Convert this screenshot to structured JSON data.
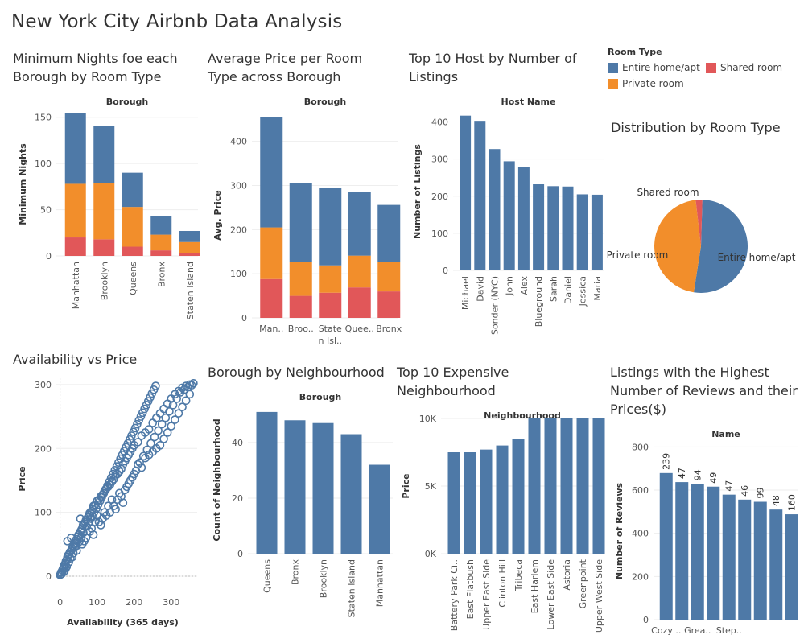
{
  "page_title": "New York City Airbnb Data Analysis",
  "colors": {
    "entire": "#4E79A7",
    "private": "#F28E2B",
    "shared": "#E15759",
    "grid": "#eeeeee",
    "axis": "#d0d0d0",
    "text": "#555555"
  },
  "legend": {
    "title": "Room Type",
    "items": [
      {
        "label": "Entire home/apt",
        "color": "#4E79A7"
      },
      {
        "label": "Shared room",
        "color": "#E15759"
      },
      {
        "label": "Private room",
        "color": "#F28E2B"
      }
    ]
  },
  "chart_data": [
    {
      "id": "min_nights",
      "type": "bar",
      "title": "Minimum Nights foe each Borough by Room Type",
      "header": "Borough",
      "ylabel": "Minimum Nights",
      "ylim": [
        0,
        155
      ],
      "yticks": [
        0,
        50,
        100,
        150
      ],
      "categories": [
        "Manhattan",
        "Brooklyn",
        "Queens",
        "Bronx",
        "Staten Island"
      ],
      "stacked": true,
      "series": [
        {
          "name": "Shared room",
          "color": "#E15759",
          "values": [
            20,
            18,
            10,
            6,
            3
          ]
        },
        {
          "name": "Private room",
          "color": "#F28E2B",
          "values": [
            58,
            61,
            43,
            17,
            12
          ]
        },
        {
          "name": "Entire home/apt",
          "color": "#4E79A7",
          "values": [
            77,
            62,
            37,
            20,
            12
          ]
        }
      ]
    },
    {
      "id": "avg_price",
      "type": "bar",
      "title": "Average Price per Room Type across Borough",
      "header": "Borough",
      "ylabel": "Avg. Price",
      "ylim": [
        0,
        465
      ],
      "yticks": [
        0,
        100,
        200,
        300,
        400
      ],
      "categories": [
        "Man..",
        "Broo..",
        "State n Isl..",
        "Quee..",
        "Bronx"
      ],
      "stacked": true,
      "series": [
        {
          "name": "Shared room",
          "color": "#E15759",
          "values": [
            88,
            50,
            57,
            69,
            60
          ]
        },
        {
          "name": "Private room",
          "color": "#F28E2B",
          "values": [
            117,
            76,
            62,
            72,
            66
          ]
        },
        {
          "name": "Entire home/apt",
          "color": "#4E79A7",
          "values": [
            250,
            180,
            175,
            145,
            130
          ]
        }
      ]
    },
    {
      "id": "top_hosts",
      "type": "bar",
      "title": "Top 10 Host by Number of Listings",
      "header": "Host Name",
      "ylabel": "Number of Listings",
      "ylim": [
        0,
        425
      ],
      "yticks": [
        0,
        100,
        200,
        300,
        400
      ],
      "categories": [
        "Michael",
        "David",
        "Sonder (NYC)",
        "John",
        "Alex",
        "Blueground",
        "Sarah",
        "Daniel",
        "Jessica",
        "Maria"
      ],
      "values": [
        417,
        403,
        327,
        294,
        279,
        232,
        227,
        226,
        205,
        204
      ]
    },
    {
      "id": "room_dist",
      "type": "pie",
      "title": "Distribution by Room Type",
      "slices": [
        {
          "label": "Entire home/apt",
          "value": 52,
          "color": "#4E79A7"
        },
        {
          "label": "Private room",
          "value": 45.7,
          "color": "#F28E2B"
        },
        {
          "label": "Shared room",
          "value": 2.3,
          "color": "#E15759"
        }
      ]
    },
    {
      "id": "avail_price",
      "type": "scatter",
      "title": "Availability vs Price",
      "xlabel": "Availability (365 days)",
      "ylabel": "Price",
      "xlim": [
        -10,
        370
      ],
      "ylim": [
        -5,
        310
      ],
      "xticks": [
        0,
        100,
        200,
        300
      ],
      "yticks": [
        0,
        100,
        200,
        300
      ],
      "points": [
        [
          0,
          2
        ],
        [
          2,
          3
        ],
        [
          3,
          6
        ],
        [
          5,
          4
        ],
        [
          6,
          9
        ],
        [
          8,
          12
        ],
        [
          10,
          14
        ],
        [
          12,
          18
        ],
        [
          14,
          20
        ],
        [
          16,
          24
        ],
        [
          18,
          26
        ],
        [
          20,
          30
        ],
        [
          22,
          33
        ],
        [
          25,
          35
        ],
        [
          27,
          38
        ],
        [
          30,
          40
        ],
        [
          32,
          44
        ],
        [
          35,
          46
        ],
        [
          38,
          50
        ],
        [
          40,
          52
        ],
        [
          42,
          56
        ],
        [
          45,
          58
        ],
        [
          48,
          62
        ],
        [
          50,
          65
        ],
        [
          55,
          70
        ],
        [
          58,
          73
        ],
        [
          60,
          75
        ],
        [
          62,
          80
        ],
        [
          65,
          82
        ],
        [
          68,
          85
        ],
        [
          70,
          88
        ],
        [
          75,
          92
        ],
        [
          78,
          96
        ],
        [
          80,
          99
        ],
        [
          85,
          102
        ],
        [
          88,
          105
        ],
        [
          90,
          110
        ],
        [
          95,
          112
        ],
        [
          100,
          118
        ],
        [
          105,
          120
        ],
        [
          110,
          125
        ],
        [
          115,
          128
        ],
        [
          120,
          133
        ],
        [
          125,
          137
        ],
        [
          130,
          140
        ],
        [
          135,
          143
        ],
        [
          140,
          148
        ],
        [
          145,
          152
        ],
        [
          150,
          158
        ],
        [
          155,
          160
        ],
        [
          160,
          164
        ],
        [
          165,
          168
        ],
        [
          170,
          175
        ],
        [
          175,
          180
        ],
        [
          180,
          185
        ],
        [
          185,
          190
        ],
        [
          190,
          195
        ],
        [
          195,
          200
        ],
        [
          200,
          205
        ],
        [
          210,
          210
        ],
        [
          220,
          220
        ],
        [
          230,
          225
        ],
        [
          240,
          230
        ],
        [
          250,
          240
        ],
        [
          260,
          248
        ],
        [
          270,
          255
        ],
        [
          280,
          262
        ],
        [
          290,
          270
        ],
        [
          300,
          278
        ],
        [
          310,
          285
        ],
        [
          320,
          290
        ],
        [
          330,
          295
        ],
        [
          340,
          298
        ],
        [
          350,
          300
        ],
        [
          360,
          302
        ],
        [
          20,
          55
        ],
        [
          30,
          60
        ],
        [
          40,
          45
        ],
        [
          55,
          90
        ],
        [
          70,
          60
        ],
        [
          80,
          70
        ],
        [
          95,
          85
        ],
        [
          100,
          95
        ],
        [
          110,
          80
        ],
        [
          120,
          100
        ],
        [
          130,
          110
        ],
        [
          140,
          120
        ],
        [
          150,
          105
        ],
        [
          160,
          130
        ],
        [
          170,
          115
        ],
        [
          180,
          140
        ],
        [
          190,
          150
        ],
        [
          200,
          160
        ],
        [
          210,
          175
        ],
        [
          220,
          170
        ],
        [
          230,
          185
        ],
        [
          240,
          190
        ],
        [
          250,
          195
        ],
        [
          260,
          200
        ],
        [
          270,
          205
        ],
        [
          280,
          215
        ],
        [
          290,
          225
        ],
        [
          300,
          235
        ],
        [
          310,
          245
        ],
        [
          320,
          255
        ],
        [
          330,
          265
        ],
        [
          340,
          275
        ],
        [
          350,
          285
        ],
        [
          45,
          40
        ],
        [
          60,
          50
        ],
        [
          65,
          55
        ],
        [
          85,
          75
        ],
        [
          90,
          65
        ],
        [
          105,
          85
        ],
        [
          115,
          90
        ],
        [
          125,
          95
        ],
        [
          135,
          100
        ],
        [
          145,
          110
        ],
        [
          155,
          120
        ],
        [
          165,
          125
        ],
        [
          175,
          135
        ],
        [
          185,
          145
        ],
        [
          195,
          155
        ],
        [
          205,
          165
        ],
        [
          215,
          178
        ],
        [
          225,
          188
        ],
        [
          235,
          198
        ],
        [
          245,
          208
        ],
        [
          255,
          218
        ],
        [
          265,
          228
        ],
        [
          275,
          238
        ],
        [
          285,
          248
        ],
        [
          295,
          258
        ],
        [
          305,
          268
        ],
        [
          315,
          278
        ],
        [
          325,
          288
        ],
        [
          335,
          292
        ],
        [
          345,
          296
        ],
        [
          355,
          299
        ],
        [
          12,
          8
        ],
        [
          15,
          12
        ],
        [
          18,
          15
        ],
        [
          24,
          22
        ],
        [
          28,
          28
        ],
        [
          33,
          30
        ],
        [
          36,
          36
        ],
        [
          44,
          48
        ],
        [
          52,
          54
        ],
        [
          57,
          60
        ],
        [
          63,
          68
        ],
        [
          72,
          78
        ],
        [
          77,
          84
        ],
        [
          83,
          90
        ],
        [
          87,
          94
        ],
        [
          92,
          100
        ],
        [
          98,
          106
        ],
        [
          103,
          112
        ],
        [
          108,
          118
        ],
        [
          113,
          124
        ],
        [
          118,
          130
        ],
        [
          123,
          136
        ],
        [
          128,
          142
        ],
        [
          133,
          148
        ],
        [
          138,
          154
        ],
        [
          143,
          160
        ],
        [
          148,
          166
        ],
        [
          153,
          172
        ],
        [
          158,
          178
        ],
        [
          163,
          184
        ],
        [
          168,
          190
        ],
        [
          173,
          196
        ],
        [
          178,
          202
        ],
        [
          183,
          208
        ],
        [
          188,
          214
        ],
        [
          193,
          220
        ],
        [
          198,
          226
        ],
        [
          203,
          232
        ],
        [
          208,
          238
        ],
        [
          213,
          244
        ],
        [
          218,
          250
        ],
        [
          223,
          256
        ],
        [
          228,
          262
        ],
        [
          233,
          268
        ],
        [
          238,
          274
        ],
        [
          243,
          280
        ],
        [
          248,
          286
        ],
        [
          253,
          292
        ],
        [
          258,
          298
        ]
      ]
    },
    {
      "id": "borough_nbhd",
      "type": "bar",
      "title": "Borough by Neighbourhood",
      "header": "Borough",
      "ylabel": "Count of Neighbourhood",
      "ylim": [
        0,
        53
      ],
      "yticks": [
        0,
        20,
        40
      ],
      "categories": [
        "Queens",
        "Bronx",
        "Brooklyn",
        "Staten Island",
        "Manhattan"
      ],
      "values": [
        51,
        48,
        47,
        43,
        32
      ]
    },
    {
      "id": "expensive_nbhd",
      "type": "bar",
      "title": "Top 10 Expensive Neighbourhood",
      "header": "Neighbourhood",
      "ylabel": "Price",
      "ylim": [
        0,
        10000
      ],
      "yticks": [
        0,
        5000,
        10000
      ],
      "ytick_labels": [
        "0K",
        "5K",
        "10K"
      ],
      "categories": [
        "Battery Park Ci..",
        "East Flatbush",
        "Upper East Side",
        "Clinton Hill",
        "Tribeca",
        "East Harlem",
        "Lower East Side",
        "Astoria",
        "Greenpoint",
        "Upper West Side"
      ],
      "values": [
        7500,
        7500,
        7700,
        8000,
        8500,
        10000,
        10000,
        10000,
        10000,
        10000
      ]
    },
    {
      "id": "top_reviews",
      "type": "bar",
      "title": "Listings with the Highest Number of Reviews and their Prices($)",
      "header": "Name",
      "ylabel": "Number of Reviews",
      "ylim": [
        0,
        820
      ],
      "yticks": [
        0,
        200,
        400,
        600,
        800
      ],
      "categories": [
        "Cozy ..",
        "",
        "Grea..",
        "",
        "Step..",
        "",
        "",
        "",
        ""
      ],
      "values": [
        679,
        637,
        629,
        616,
        579,
        556,
        546,
        510,
        488
      ],
      "data_labels": [
        "239",
        "47",
        "94",
        "49",
        "47",
        "46",
        "99",
        "48",
        "160"
      ]
    }
  ]
}
